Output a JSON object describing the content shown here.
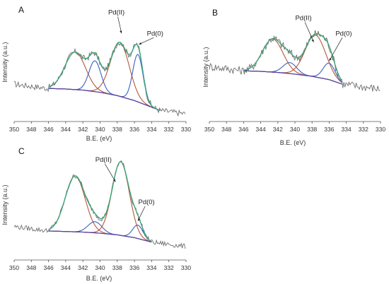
{
  "chart_data": [
    {
      "panel": "A",
      "type": "line",
      "xlabel": "B.E. (eV)",
      "ylabel": "Intensity (a.u.)",
      "xlim": [
        350,
        330
      ],
      "xticks": [
        350,
        348,
        346,
        344,
        342,
        340,
        338,
        336,
        334,
        332,
        330
      ],
      "ylim": [
        0,
        1
      ],
      "colors": {
        "raw": "#6e6e6e",
        "fit": "#3fa57a",
        "pd2": "#b5563b",
        "pd0": "#3a5fc4",
        "background": "#5a3fa0"
      },
      "background": {
        "x": [
          346,
          344,
          342,
          340,
          338,
          336,
          334,
          333
        ],
        "y": [
          0.3,
          0.295,
          0.285,
          0.265,
          0.235,
          0.19,
          0.13,
          0.1
        ]
      },
      "peaks": [
        {
          "name": "Pd(II)",
          "center": 342.9,
          "height": 0.34,
          "width": 1.2
        },
        {
          "name": "Pd(0)",
          "center": 340.6,
          "height": 0.28,
          "width": 0.7
        },
        {
          "name": "Pd(II)",
          "center": 337.7,
          "height": 0.49,
          "width": 1.1
        },
        {
          "name": "Pd(0)",
          "center": 335.6,
          "height": 0.43,
          "width": 0.6
        }
      ],
      "raw_range": [
        350,
        330
      ],
      "noise": 0.025,
      "annotations": [
        {
          "text": "Pd(II)",
          "x": 338.1,
          "y": 0.97,
          "arrow_to": [
            337.5,
            0.8
          ]
        },
        {
          "text": "Pd(0)",
          "x": 333.6,
          "y": 0.78,
          "arrow_to": [
            335.5,
            0.7
          ]
        }
      ]
    },
    {
      "panel": "B",
      "type": "line",
      "xlabel": "B.E. (eV)",
      "ylabel": "Intensity (a.u.)",
      "xlim": [
        350,
        330
      ],
      "xticks": [
        350,
        348,
        346,
        344,
        342,
        340,
        338,
        336,
        334,
        332,
        330
      ],
      "ylim": [
        0,
        1
      ],
      "colors": {
        "raw": "#6e6e6e",
        "fit": "#3fa57a",
        "pd2": "#b5563b",
        "pd0": "#3a5fc4",
        "background": "#5a3fa0"
      },
      "background": {
        "x": [
          346,
          344,
          342,
          340,
          338,
          336,
          334.5
        ],
        "y": [
          0.46,
          0.455,
          0.445,
          0.43,
          0.41,
          0.38,
          0.34
        ]
      },
      "peaks": [
        {
          "name": "Pd(II)",
          "center": 342.6,
          "height": 0.3,
          "width": 1.2
        },
        {
          "name": "Pd(0)",
          "center": 340.6,
          "height": 0.1,
          "width": 0.8
        },
        {
          "name": "Pd(II)",
          "center": 337.6,
          "height": 0.38,
          "width": 1.2
        },
        {
          "name": "Pd(0)",
          "center": 336.0,
          "height": 0.15,
          "width": 0.7
        }
      ],
      "raw_range": [
        350,
        330
      ],
      "noise": 0.035,
      "annotations": [
        {
          "text": "Pd(II)",
          "x": 339.0,
          "y": 0.92,
          "arrow_to": [
            337.8,
            0.72
          ]
        },
        {
          "text": "Pd(0)",
          "x": 334.3,
          "y": 0.78,
          "arrow_to": [
            336.0,
            0.55
          ]
        }
      ]
    },
    {
      "panel": "C",
      "type": "line",
      "xlabel": "B.E. (eV)",
      "ylabel": "Intensity (a.u.)",
      "xlim": [
        350,
        330
      ],
      "xticks": [
        350,
        348,
        346,
        344,
        342,
        340,
        338,
        336,
        334,
        332,
        330
      ],
      "ylim": [
        0,
        1
      ],
      "colors": {
        "raw": "#6e6e6e",
        "fit": "#3fa57a",
        "pd2": "#b5563b",
        "pd0": "#3a5fc4",
        "background": "#5a3fa0"
      },
      "background": {
        "x": [
          346,
          344,
          342,
          340,
          338,
          336,
          334
        ],
        "y": [
          0.26,
          0.255,
          0.25,
          0.24,
          0.225,
          0.2,
          0.16
        ]
      },
      "peaks": [
        {
          "name": "Pd(II)",
          "center": 342.9,
          "height": 0.5,
          "width": 1.15
        },
        {
          "name": "Pd(0)",
          "center": 340.6,
          "height": 0.1,
          "width": 0.8
        },
        {
          "name": "Pd(II)",
          "center": 337.6,
          "height": 0.66,
          "width": 1.0
        },
        {
          "name": "Pd(0)",
          "center": 335.6,
          "height": 0.12,
          "width": 0.6
        }
      ],
      "raw_range": [
        350,
        330
      ],
      "noise": 0.02,
      "annotations": [
        {
          "text": "Pd(II)",
          "x": 339.6,
          "y": 0.88,
          "arrow_to": [
            338.2,
            0.7
          ]
        },
        {
          "text": "Pd(0)",
          "x": 334.6,
          "y": 0.5,
          "arrow_to": [
            335.6,
            0.35
          ]
        }
      ]
    }
  ]
}
